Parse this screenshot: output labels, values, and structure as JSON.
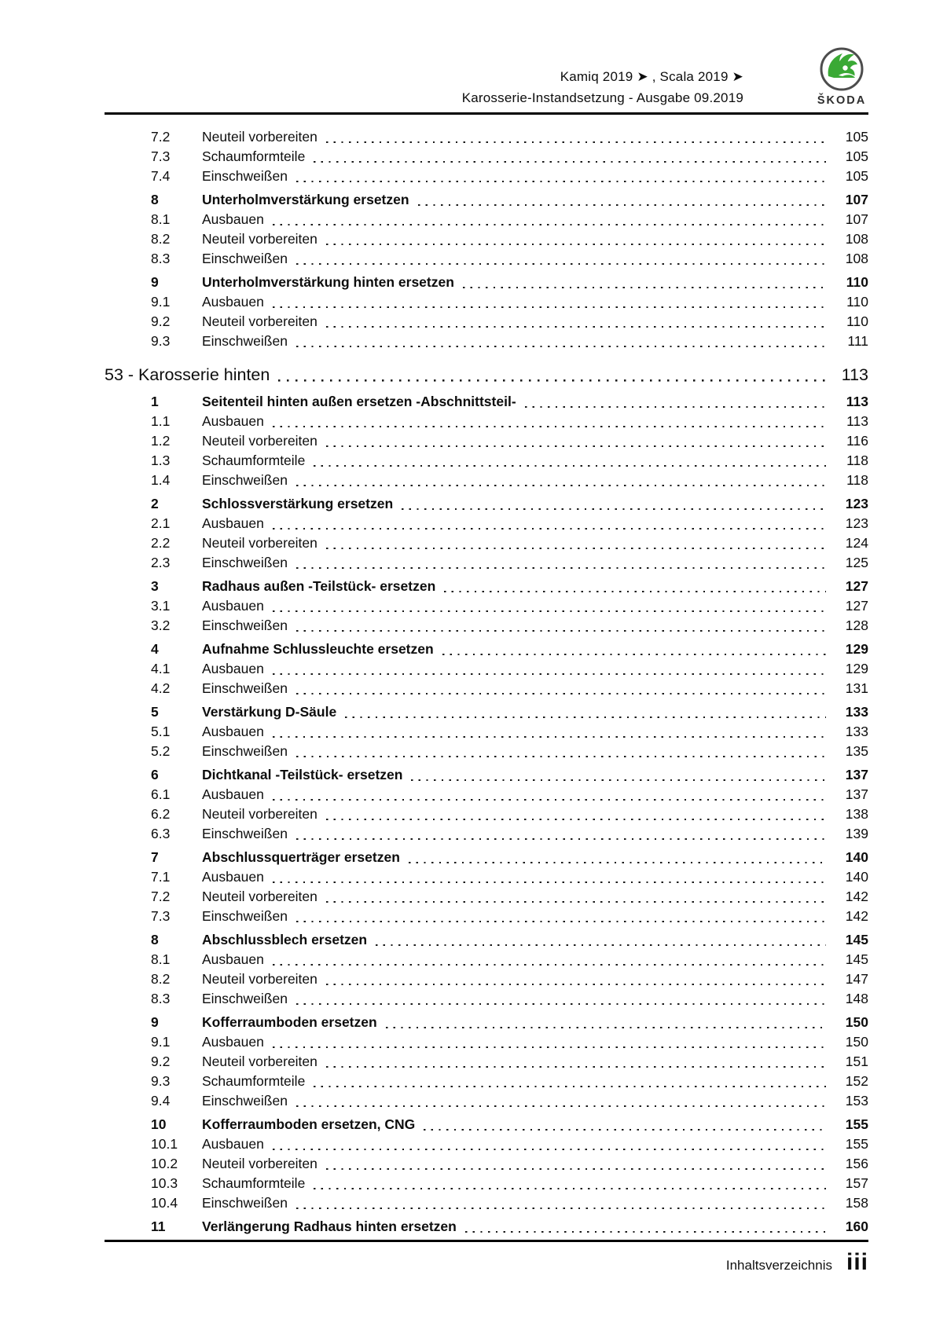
{
  "header": {
    "line1": "Kamiq 2019 ➤ , Scala 2019 ➤",
    "line2": "Karosserie-Instandsetzung - Ausgabe 09.2019",
    "logo_brand": "ŠKODA",
    "logo_green": "#3aa935",
    "logo_ring": "#4d4d4d"
  },
  "toc": {
    "entries": [
      {
        "num": "7.2",
        "title": "Neuteil vorbereiten",
        "page": "105",
        "level": "sub"
      },
      {
        "num": "7.3",
        "title": "Schaumformteile",
        "page": "105",
        "level": "sub"
      },
      {
        "num": "7.4",
        "title": "Einschweißen",
        "page": "105",
        "level": "sub"
      },
      {
        "num": "8",
        "title": "Unterholmverstärkung ersetzen",
        "page": "107",
        "level": "main"
      },
      {
        "num": "8.1",
        "title": "Ausbauen",
        "page": "107",
        "level": "sub"
      },
      {
        "num": "8.2",
        "title": "Neuteil vorbereiten",
        "page": "108",
        "level": "sub"
      },
      {
        "num": "8.3",
        "title": "Einschweißen",
        "page": "108",
        "level": "sub"
      },
      {
        "num": "9",
        "title": "Unterholmverstärkung hinten ersetzen",
        "page": "110",
        "level": "main"
      },
      {
        "num": "9.1",
        "title": "Ausbauen",
        "page": "110",
        "level": "sub"
      },
      {
        "num": "9.2",
        "title": "Neuteil vorbereiten",
        "page": "110",
        "level": "sub"
      },
      {
        "num": "9.3",
        "title": "Einschweißen",
        "page": "111",
        "level": "sub"
      },
      {
        "num": "",
        "title": "53 - Karosserie hinten",
        "page": "113",
        "level": "chapter"
      },
      {
        "num": "1",
        "title": "Seitenteil hinten außen ersetzen -Abschnittsteil-",
        "page": "113",
        "level": "main"
      },
      {
        "num": "1.1",
        "title": "Ausbauen",
        "page": "113",
        "level": "sub"
      },
      {
        "num": "1.2",
        "title": "Neuteil vorbereiten",
        "page": "116",
        "level": "sub"
      },
      {
        "num": "1.3",
        "title": "Schaumformteile",
        "page": "118",
        "level": "sub"
      },
      {
        "num": "1.4",
        "title": "Einschweißen",
        "page": "118",
        "level": "sub"
      },
      {
        "num": "2",
        "title": "Schlossverstärkung ersetzen",
        "page": "123",
        "level": "main"
      },
      {
        "num": "2.1",
        "title": "Ausbauen",
        "page": "123",
        "level": "sub"
      },
      {
        "num": "2.2",
        "title": "Neuteil vorbereiten",
        "page": "124",
        "level": "sub"
      },
      {
        "num": "2.3",
        "title": "Einschweißen",
        "page": "125",
        "level": "sub"
      },
      {
        "num": "3",
        "title": "Radhaus außen -Teilstück- ersetzen",
        "page": "127",
        "level": "main"
      },
      {
        "num": "3.1",
        "title": "Ausbauen",
        "page": "127",
        "level": "sub"
      },
      {
        "num": "3.2",
        "title": "Einschweißen",
        "page": "128",
        "level": "sub"
      },
      {
        "num": "4",
        "title": "Aufnahme Schlussleuchte ersetzen",
        "page": "129",
        "level": "main"
      },
      {
        "num": "4.1",
        "title": "Ausbauen",
        "page": "129",
        "level": "sub"
      },
      {
        "num": "4.2",
        "title": "Einschweißen",
        "page": "131",
        "level": "sub"
      },
      {
        "num": "5",
        "title": "Verstärkung D-Säule",
        "page": "133",
        "level": "main"
      },
      {
        "num": "5.1",
        "title": "Ausbauen",
        "page": "133",
        "level": "sub"
      },
      {
        "num": "5.2",
        "title": "Einschweißen",
        "page": "135",
        "level": "sub"
      },
      {
        "num": "6",
        "title": "Dichtkanal -Teilstück- ersetzen",
        "page": "137",
        "level": "main"
      },
      {
        "num": "6.1",
        "title": "Ausbauen",
        "page": "137",
        "level": "sub"
      },
      {
        "num": "6.2",
        "title": "Neuteil vorbereiten",
        "page": "138",
        "level": "sub"
      },
      {
        "num": "6.3",
        "title": "Einschweißen",
        "page": "139",
        "level": "sub"
      },
      {
        "num": "7",
        "title": "Abschlussquerträger ersetzen",
        "page": "140",
        "level": "main"
      },
      {
        "num": "7.1",
        "title": "Ausbauen",
        "page": "140",
        "level": "sub"
      },
      {
        "num": "7.2",
        "title": "Neuteil vorbereiten",
        "page": "142",
        "level": "sub"
      },
      {
        "num": "7.3",
        "title": "Einschweißen",
        "page": "142",
        "level": "sub"
      },
      {
        "num": "8",
        "title": "Abschlussblech ersetzen",
        "page": "145",
        "level": "main"
      },
      {
        "num": "8.1",
        "title": "Ausbauen",
        "page": "145",
        "level": "sub"
      },
      {
        "num": "8.2",
        "title": "Neuteil vorbereiten",
        "page": "147",
        "level": "sub"
      },
      {
        "num": "8.3",
        "title": "Einschweißen",
        "page": "148",
        "level": "sub"
      },
      {
        "num": "9",
        "title": "Kofferraumboden ersetzen",
        "page": "150",
        "level": "main"
      },
      {
        "num": "9.1",
        "title": "Ausbauen",
        "page": "150",
        "level": "sub"
      },
      {
        "num": "9.2",
        "title": "Neuteil vorbereiten",
        "page": "151",
        "level": "sub"
      },
      {
        "num": "9.3",
        "title": "Schaumformteile",
        "page": "152",
        "level": "sub"
      },
      {
        "num": "9.4",
        "title": "Einschweißen",
        "page": "153",
        "level": "sub"
      },
      {
        "num": "10",
        "title": "Kofferraumboden ersetzen, CNG",
        "page": "155",
        "level": "main"
      },
      {
        "num": "10.1",
        "title": "Ausbauen",
        "page": "155",
        "level": "sub"
      },
      {
        "num": "10.2",
        "title": "Neuteil vorbereiten",
        "page": "156",
        "level": "sub"
      },
      {
        "num": "10.3",
        "title": "Schaumformteile",
        "page": "157",
        "level": "sub"
      },
      {
        "num": "10.4",
        "title": "Einschweißen",
        "page": "158",
        "level": "sub"
      },
      {
        "num": "11",
        "title": "Verlängerung Radhaus hinten ersetzen",
        "page": "160",
        "level": "main"
      }
    ]
  },
  "footer": {
    "label": "Inhaltsverzeichnis",
    "page": "iii"
  }
}
